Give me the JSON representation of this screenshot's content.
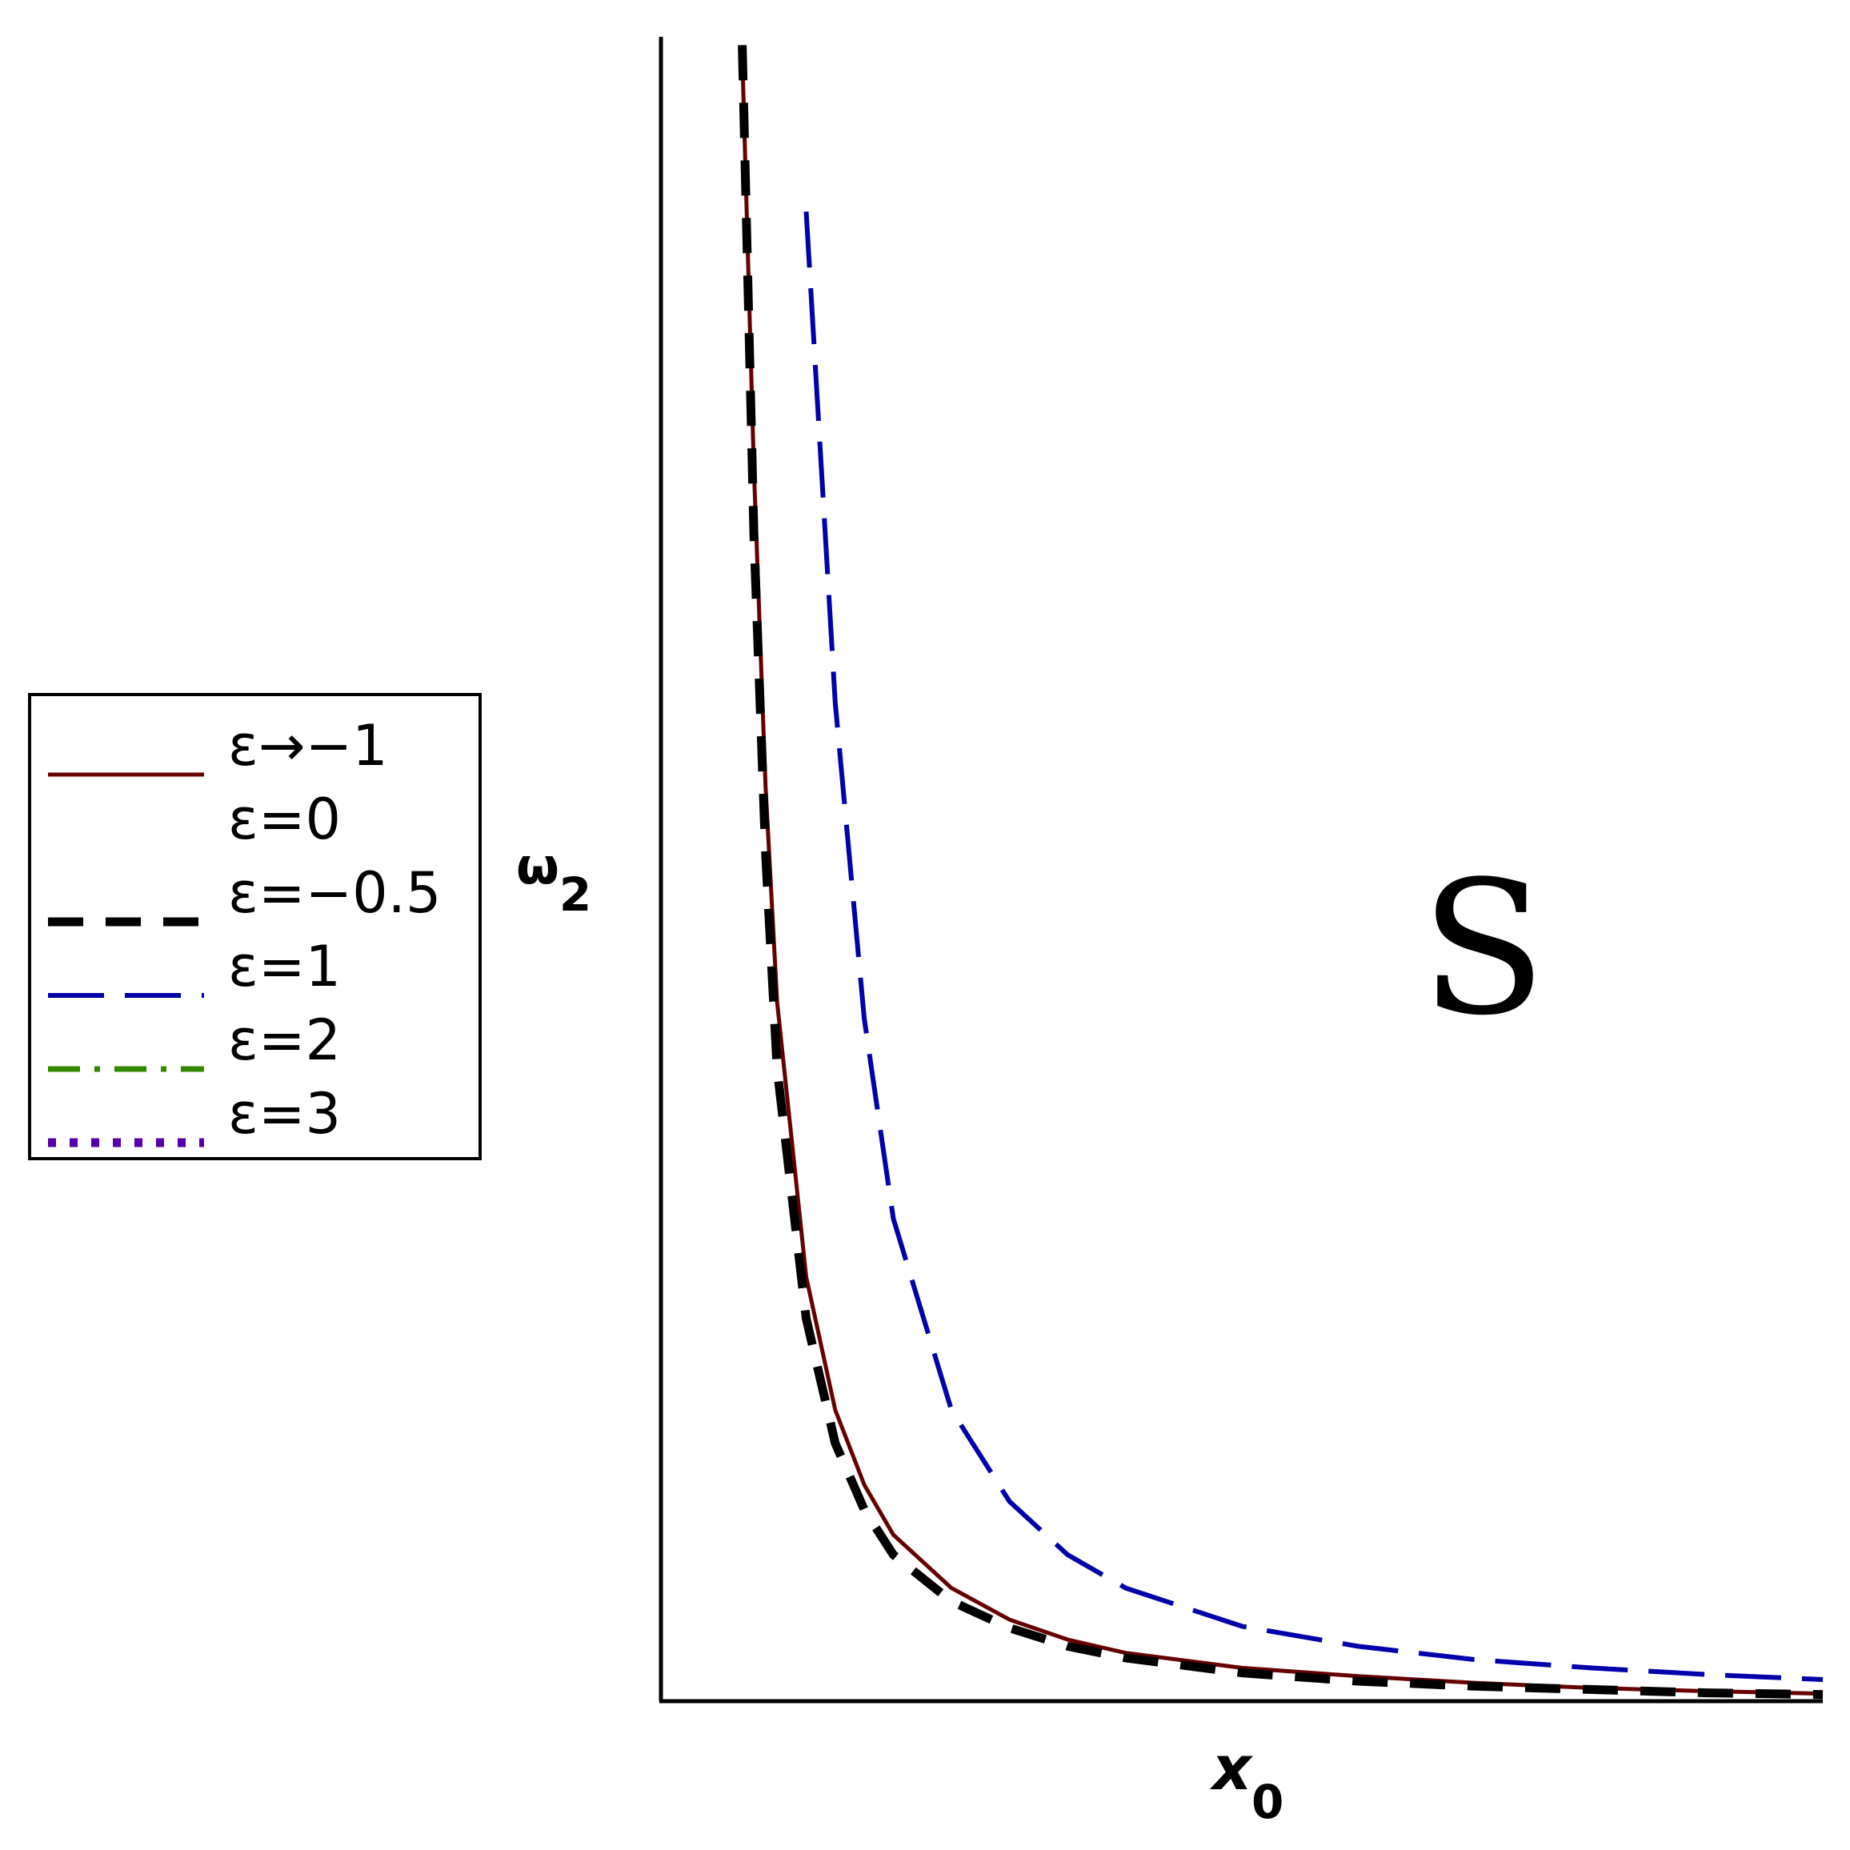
{
  "chart_data": {
    "type": "line",
    "title": "",
    "xlabel": "x",
    "xlabel_sub": "0",
    "ylabel": "ω",
    "ylabel_sub": "2",
    "annotation": "S",
    "xlim": [
      0,
      10
    ],
    "ylim": [
      0,
      10
    ],
    "grid": false,
    "legend_position": "center-left (outside plot)",
    "x": [
      0.7,
      0.8,
      0.9,
      1.0,
      1.25,
      1.5,
      1.75,
      2.0,
      2.5,
      3.0,
      3.5,
      4.0,
      5.0,
      6.0,
      7.0,
      8.0,
      9.0,
      10.0
    ],
    "series": [
      {
        "name": "ε→−1",
        "color": "#660000",
        "style": "solid",
        "values": [
          9.9,
          7.4,
          5.5,
          4.2,
          2.55,
          1.75,
          1.3,
          1.0,
          0.68,
          0.49,
          0.37,
          0.29,
          0.2,
          0.15,
          0.11,
          0.08,
          0.06,
          0.045
        ]
      },
      {
        "name": "ε=0",
        "color": "#ffffff",
        "style": "hidden",
        "values": [
          null,
          null,
          null,
          null,
          null,
          null,
          null,
          null,
          null,
          null,
          null,
          null,
          null,
          null,
          null,
          null,
          null,
          null
        ]
      },
      {
        "name": "ε=−0.5",
        "color": "#000000",
        "style": "dashed",
        "values": [
          9.95,
          7.0,
          5.1,
          3.8,
          2.3,
          1.55,
          1.15,
          0.88,
          0.6,
          0.44,
          0.33,
          0.26,
          0.17,
          0.12,
          0.09,
          0.07,
          0.05,
          0.04
        ]
      },
      {
        "name": "ε=1",
        "color": "#0000aa",
        "style": "longdash",
        "values": [
          null,
          null,
          null,
          null,
          8.95,
          6.0,
          4.1,
          2.9,
          1.75,
          1.2,
          0.88,
          0.68,
          0.45,
          0.33,
          0.25,
          0.2,
          0.16,
          0.13
        ]
      },
      {
        "name": "ε=2",
        "color": "#338800",
        "style": "dashdot",
        "values": [
          null,
          null,
          null,
          null,
          null,
          null,
          null,
          null,
          null,
          null,
          null,
          null,
          null,
          null,
          null,
          null,
          null,
          null
        ]
      },
      {
        "name": "ε=3",
        "color": "#5500aa",
        "style": "dotted",
        "values": [
          null,
          null,
          null,
          null,
          null,
          null,
          null,
          null,
          null,
          null,
          null,
          null,
          null,
          null,
          null,
          null,
          null,
          null
        ]
      }
    ]
  }
}
